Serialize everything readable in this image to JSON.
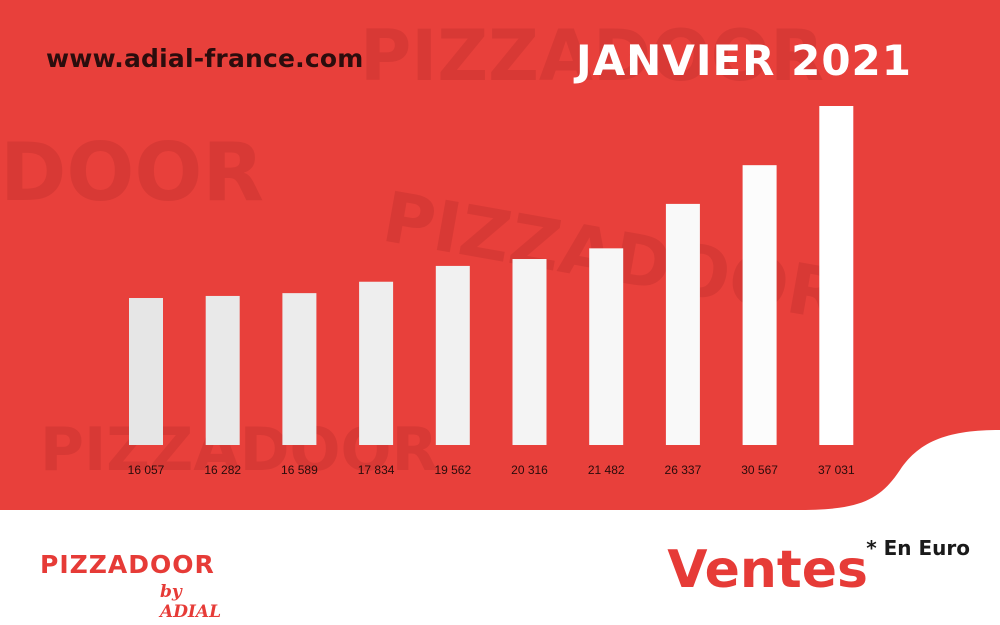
{
  "header": {
    "url": "www.adial-france.com",
    "period": "JANVIER 2021"
  },
  "brand": {
    "logo_word": "PIZZADOOR",
    "logo_sub": "by ADIAL"
  },
  "footer": {
    "metric": "Ventes",
    "unit_note": "* En Euro"
  },
  "colors": {
    "background_red": "#e8403b",
    "bar_white": "#ffffff",
    "brand_red": "#e63b37"
  },
  "chart_data": {
    "type": "bar",
    "title": "",
    "xlabel": "",
    "ylabel": "",
    "categories": [
      "16 057",
      "16 282",
      "16 589",
      "17 834",
      "19 562",
      "20 316",
      "21 482",
      "26 337",
      "30 567",
      "37 031"
    ],
    "values": [
      16057,
      16282,
      16589,
      17834,
      19562,
      20316,
      21482,
      26337,
      30567,
      37031
    ],
    "ylim": [
      0,
      37031
    ],
    "grid": false,
    "legend": "none"
  }
}
